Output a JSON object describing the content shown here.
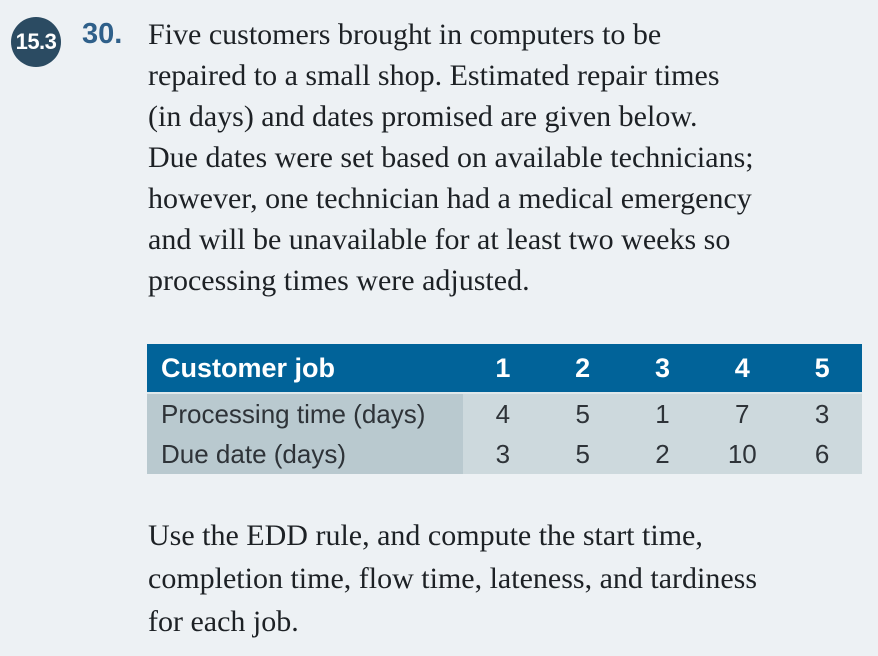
{
  "colors": {
    "page-bg": "#edf1f4",
    "badge-bg": "#2b4b62",
    "badge-text": "#ffffff",
    "number-blue": "#2f608a",
    "header-bg": "#016399",
    "header-text": "#ffffff",
    "label-cell-bg": "#b9c9cf",
    "value-cell-bg": "#cdd9dd",
    "body-text": "#1d2125",
    "table-text": "#2e3338"
  },
  "badge": {
    "label": "15.3"
  },
  "problem": {
    "number": "30.",
    "lines": [
      "Five customers brought in computers to be",
      "repaired to a small shop. Estimated repair times",
      "(in days) and dates promised are given below.",
      "Due dates were set based on available technicians;",
      "however, one technician had a medical emergency",
      "and will be unavailable for at least two weeks so",
      "processing times were adjusted."
    ]
  },
  "table": {
    "header": {
      "label": "Customer job",
      "columns": [
        "1",
        "2",
        "3",
        "4",
        "5"
      ]
    },
    "rows": [
      {
        "label": "Processing time (days)",
        "values": [
          "4",
          "5",
          "1",
          "7",
          "3"
        ]
      },
      {
        "label": "Due date (days)",
        "values": [
          "3",
          "5",
          "2",
          "10",
          "6"
        ]
      }
    ]
  },
  "closing": {
    "lines": [
      "Use the EDD rule, and compute the start time,",
      "completion time, flow time, lateness, and tardiness",
      "for each job."
    ]
  }
}
